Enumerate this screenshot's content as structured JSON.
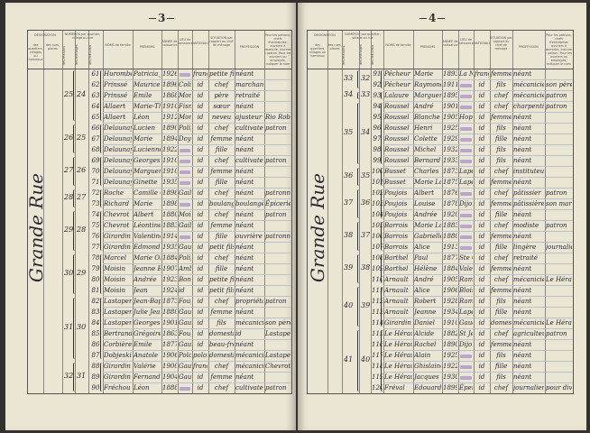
{
  "headers": {
    "designation": "DÉSIGNATION",
    "designation_sub1": "des quartiers, villages ou hameaux",
    "designation_sub2": "des rues, places",
    "numeros": "NUMÉROS par quartier, village ou rue",
    "numeros_sub": [
      "des maisons",
      "des ménages",
      "des individus"
    ],
    "noms": "NOMS de famille",
    "prenoms": "PRÉNOMS",
    "annee": "ANNÉE de naissance",
    "lieu": "LIEU de naissance",
    "nationalite": "NATIONALITÉ",
    "situation": "SITUATION par rapport au chef de ménage",
    "profession": "PROFESSION",
    "notes": "Pour les patrons, chefs d'entreprise, ouvriers à domicile, inscrire : patron. Pour les ouvriers ou employés, indiquer le nom du patron ou de l'entreprise qui les emploie."
  },
  "left_page": {
    "page_number": "3",
    "street": "Grande Rue",
    "groups": [
      {
        "maison": "25",
        "menage": "24",
        "first": 61,
        "last": 65
      },
      {
        "maison": "26",
        "menage": "25",
        "first": 66,
        "last": 68
      },
      {
        "maison": "27",
        "menage": "26",
        "first": 69,
        "last": 71
      },
      {
        "maison": "28",
        "menage": "27",
        "first": 72,
        "last": 73
      },
      {
        "maison": "29",
        "menage": "28",
        "first": 74,
        "last": 77
      },
      {
        "maison": "30",
        "menage": "29",
        "first": 78,
        "last": 81
      },
      {
        "maison": "31",
        "menage": "30",
        "first": 82,
        "last": 87
      },
      {
        "maison": "32",
        "menage": "31",
        "first": 88,
        "last": 90
      }
    ],
    "rows": [
      {
        "n": "61",
        "nom": "Hurombert",
        "prenom": "Patricia Jeanne",
        "annee": "1926",
        "lieu": "",
        "stamp": true,
        "nat": "française",
        "sit": "petite fille",
        "prof": "néant",
        "note": ""
      },
      {
        "n": "62",
        "nom": "Prinssé",
        "prenom": "Maurice",
        "annee": "1896",
        "lieu": "Coligny",
        "nat": "id",
        "sit": "chef",
        "prof": "marchand ambulant",
        "note": ""
      },
      {
        "n": "63",
        "nom": "Prinssé",
        "prenom": "Emile",
        "annee": "1868",
        "lieu": "Montargis",
        "nat": "id",
        "sit": "père",
        "prof": "retraité",
        "note": ""
      },
      {
        "n": "64",
        "nom": "Allaert",
        "prenom": "Marie-Thérèse",
        "annee": "1910",
        "lieu": "Fismes",
        "nat": "id",
        "sit": "sœur",
        "prof": "néant",
        "note": ""
      },
      {
        "n": "65",
        "nom": "Allaert",
        "prenom": "Léon",
        "annee": "1912",
        "lieu": "Montargis",
        "nat": "id",
        "sit": "neveu",
        "prof": "ajusteur mécanicien",
        "note": "Rio Roblet"
      },
      {
        "n": "66",
        "nom": "Delaunay",
        "prenom": "Lucien",
        "annee": "1890",
        "lieu": "Polignac",
        "nat": "id",
        "sit": "chef",
        "prof": "cultivateur",
        "note": "patron"
      },
      {
        "n": "67",
        "nom": "Delaunay",
        "prenom": "Marie",
        "annee": "1894",
        "lieu": "Doyen",
        "nat": "id",
        "sit": "femme",
        "prof": "néant",
        "note": ""
      },
      {
        "n": "68",
        "nom": "Delaunay",
        "prenom": "Lucienne",
        "annee": "1922",
        "lieu": "",
        "stamp": true,
        "nat": "id",
        "sit": "fille",
        "prof": "néant",
        "note": ""
      },
      {
        "n": "69",
        "nom": "Delaunay",
        "prenom": "Georges",
        "annee": "1910",
        "lieu": "",
        "stamp": true,
        "nat": "id",
        "sit": "chef",
        "prof": "cultivateur",
        "note": "patron"
      },
      {
        "n": "70",
        "nom": "Delaunay",
        "prenom": "Marguerite",
        "annee": "1910",
        "lieu": "",
        "stamp": true,
        "nat": "id",
        "sit": "femme",
        "prof": "néant",
        "note": ""
      },
      {
        "n": "71",
        "nom": "Delaunay",
        "prenom": "Ginette",
        "annee": "1935",
        "lieu": "",
        "stamp": true,
        "nat": "id",
        "sit": "fille",
        "prof": "néant",
        "note": ""
      },
      {
        "n": "72",
        "nom": "Roche",
        "prenom": "Camille Olga",
        "annee": "1898",
        "lieu": "Gaillard",
        "nat": "id",
        "sit": "chef",
        "prof": "néant",
        "note": "patronne"
      },
      {
        "n": "73",
        "nom": "Richard",
        "prenom": "Marie",
        "annee": "1898",
        "lieu": "",
        "stamp": true,
        "nat": "id",
        "sit": "boulangère",
        "prof": "boulangère",
        "note": "Épicerie Camille"
      },
      {
        "n": "74",
        "nom": "Chevrot",
        "prenom": "Albert",
        "annee": "1880",
        "lieu": "Moissac",
        "nat": "id",
        "sit": "chef",
        "prof": "néant",
        "note": "patron"
      },
      {
        "n": "75",
        "nom": "Chevrot",
        "prenom": "Léontine",
        "annee": "1883",
        "lieu": "Gaillac",
        "nat": "id",
        "sit": "femme",
        "prof": "néant",
        "note": ""
      },
      {
        "n": "76",
        "nom": "Girardin",
        "prenom": "Valentine",
        "annee": "1914",
        "lieu": "",
        "stamp": true,
        "nat": "id",
        "sit": "fille",
        "prof": "ouvrière",
        "note": "patronne"
      },
      {
        "n": "77",
        "nom": "Girardin",
        "prenom": "Edmond",
        "annee": "1935",
        "lieu": "Gaudelle",
        "nat": "id",
        "sit": "petit fils",
        "prof": "néant",
        "note": ""
      },
      {
        "n": "78",
        "nom": "Marcel",
        "prenom": "Marie Olga",
        "annee": "1884",
        "lieu": "Polignac",
        "nat": "id",
        "sit": "chef",
        "prof": "néant",
        "note": ""
      },
      {
        "n": "79",
        "nom": "Moisin",
        "prenom": "Jeanne Eugénie",
        "annee": "1907",
        "lieu": "Ambérieu",
        "nat": "id",
        "sit": "fille",
        "prof": "néant",
        "note": ""
      },
      {
        "n": "80",
        "nom": "Moisin",
        "prenom": "Andrée",
        "annee": "1923",
        "lieu": "Bonneval",
        "nat": "id",
        "sit": "petite fille",
        "prof": "néant",
        "note": ""
      },
      {
        "n": "81",
        "nom": "Moisin",
        "prenom": "Jean",
        "annee": "1924",
        "lieu": "id",
        "nat": "id",
        "sit": "petit fils",
        "prof": "néant",
        "note": ""
      },
      {
        "n": "82",
        "nom": "Lastapent",
        "prenom": "Jean-Baptiste",
        "annee": "1873",
        "lieu": "Fougerolles",
        "nat": "id",
        "sit": "chef",
        "prof": "propriétaire",
        "note": "patron"
      },
      {
        "n": "83",
        "nom": "Lastapent",
        "prenom": "Julie Jeanne",
        "annee": "1880",
        "lieu": "Gaudelle",
        "nat": "id",
        "sit": "femme",
        "prof": "néant",
        "note": ""
      },
      {
        "n": "84",
        "nom": "Lastapent",
        "prenom": "Georges",
        "annee": "1901",
        "lieu": "Gaudelle",
        "nat": "id",
        "sit": "fils",
        "prof": "mécanicien",
        "note": "son père"
      },
      {
        "n": "85",
        "nom": "Bertrand",
        "prenom": "Grégoire",
        "annee": "1863",
        "lieu": "Fougerolles",
        "nat": "id",
        "sit": "domestique",
        "prof": "id",
        "note": "Lastapent"
      },
      {
        "n": "86",
        "nom": "Corbière",
        "prenom": "Emile",
        "annee": "1877",
        "lieu": "Gaudelle",
        "nat": "id",
        "sit": "beau-frère",
        "prof": "néant",
        "note": ""
      },
      {
        "n": "87",
        "nom": "Dobjeski",
        "prenom": "Anatole",
        "annee": "1906",
        "lieu": "Pologne",
        "nat": "polonais",
        "sit": "domestique",
        "prof": "mécanicien",
        "note": "Lastapent"
      },
      {
        "n": "88",
        "nom": "Girardin",
        "prenom": "Valérie",
        "annee": "1900",
        "lieu": "Gaudelle",
        "nat": "française",
        "sit": "chef",
        "prof": "mécanicien",
        "note": "Chevrot Albert"
      },
      {
        "n": "89",
        "nom": "Girardin",
        "prenom": "Fernande",
        "annee": "1904",
        "lieu": "Gaudelle",
        "nat": "id",
        "sit": "femme",
        "prof": "néant",
        "note": ""
      },
      {
        "n": "90",
        "nom": "Fréchou",
        "prenom": "Léon",
        "annee": "1888",
        "lieu": "",
        "stamp": true,
        "nat": "id",
        "sit": "chef",
        "prof": "cultivateur fermier",
        "note": "patron"
      }
    ]
  },
  "right_page": {
    "page_number": "4",
    "street": "Grande Rue",
    "groups": [
      {
        "maison": "33",
        "menage": "32",
        "first": 91,
        "last": 92
      },
      {
        "maison": "34",
        "menage": "33",
        "first": 93,
        "last": 93
      },
      {
        "maison": "35",
        "menage": "34",
        "first": 94,
        "last": 99
      },
      {
        "maison": "36",
        "menage": "35",
        "first": 100,
        "last": 101
      },
      {
        "maison": "37",
        "menage": "36",
        "first": 102,
        "last": 104
      },
      {
        "maison": "38",
        "menage": "37",
        "first": 105,
        "last": 107
      },
      {
        "maison": "39",
        "menage": "38",
        "first": 108,
        "last": 110
      },
      {
        "maison": "40",
        "menage": "39",
        "first": 111,
        "last": 114
      },
      {
        "maison": "41",
        "menage": "40",
        "first": 115,
        "last": 120
      }
    ],
    "rows": [
      {
        "n": "91",
        "nom": "Pécheur",
        "prenom": "Marie",
        "annee": "1893",
        "lieu": "La Neuville",
        "nat": "française",
        "sit": "femme",
        "prof": "néant",
        "note": ""
      },
      {
        "n": "92",
        "nom": "Pécheur",
        "prenom": "Raymond",
        "annee": "1911",
        "lieu": "",
        "stamp": true,
        "nat": "id",
        "sit": "fils",
        "prof": "mécanicien",
        "note": "son père"
      },
      {
        "n": "93",
        "nom": "Lalaure",
        "prenom": "Marguerite",
        "annee": "1895",
        "lieu": "",
        "stamp": true,
        "nat": "id",
        "sit": "chef",
        "prof": "mécanicien",
        "note": "patron"
      },
      {
        "n": "94",
        "nom": "Roussel",
        "prenom": "André",
        "annee": "1901",
        "lieu": "",
        "stamp": true,
        "nat": "id",
        "sit": "chef",
        "prof": "charpentier",
        "note": "patron"
      },
      {
        "n": "95",
        "nom": "Roussel",
        "prenom": "Blanche",
        "annee": "1905",
        "lieu": "Hoplande",
        "nat": "id",
        "sit": "femme",
        "prof": "néant",
        "note": ""
      },
      {
        "n": "96",
        "nom": "Roussel",
        "prenom": "Henri",
        "annee": "1925",
        "lieu": "",
        "stamp": true,
        "nat": "id",
        "sit": "fils",
        "prof": "néant",
        "note": ""
      },
      {
        "n": "97",
        "nom": "Roussel",
        "prenom": "Colette",
        "annee": "1929",
        "lieu": "",
        "stamp": true,
        "nat": "id",
        "sit": "fille",
        "prof": "néant",
        "note": ""
      },
      {
        "n": "98",
        "nom": "Roussel",
        "prenom": "Michel",
        "annee": "1932",
        "lieu": "",
        "stamp": true,
        "nat": "id",
        "sit": "fils",
        "prof": "néant",
        "note": ""
      },
      {
        "n": "99",
        "nom": "Roussel",
        "prenom": "Bernard",
        "annee": "1933",
        "lieu": "",
        "stamp": true,
        "nat": "id",
        "sit": "fils",
        "prof": "néant",
        "note": ""
      },
      {
        "n": "100",
        "nom": "Busset",
        "prenom": "Charles",
        "annee": "1873",
        "lieu": "Lapeyre",
        "nat": "id",
        "sit": "chef",
        "prof": "instituteur honoraire",
        "note": ""
      },
      {
        "n": "101",
        "nom": "Busset",
        "prenom": "Marie Louise",
        "annee": "1875",
        "lieu": "Lapeyre",
        "nat": "id",
        "sit": "femme",
        "prof": "néant",
        "note": ""
      },
      {
        "n": "102",
        "nom": "Poujois",
        "prenom": "Albert",
        "annee": "1876",
        "lieu": "",
        "stamp": true,
        "nat": "id",
        "sit": "chef",
        "prof": "pâtissier",
        "note": "patron"
      },
      {
        "n": "103",
        "nom": "Poujois",
        "prenom": "Louise",
        "annee": "1878",
        "lieu": "Dijon",
        "nat": "id",
        "sit": "femme",
        "prof": "pâtissière",
        "note": "son mari"
      },
      {
        "n": "104",
        "nom": "Poujois",
        "prenom": "Andrée",
        "annee": "1920",
        "lieu": "",
        "stamp": true,
        "nat": "id",
        "sit": "fille",
        "prof": "néant",
        "note": ""
      },
      {
        "n": "105",
        "nom": "Barrois",
        "prenom": "Marie Louis",
        "annee": "1883",
        "lieu": "",
        "stamp": true,
        "nat": "id",
        "sit": "chef",
        "prof": "modiste",
        "note": "patron"
      },
      {
        "n": "106",
        "nom": "Barrois",
        "prenom": "Gabrielle",
        "annee": "1880",
        "lieu": "",
        "stamp": true,
        "nat": "id",
        "sit": "femme",
        "prof": "néant",
        "note": ""
      },
      {
        "n": "107",
        "nom": "Barrois",
        "prenom": "Alice",
        "annee": "1913",
        "lieu": "",
        "stamp": true,
        "nat": "id",
        "sit": "fille",
        "prof": "lingère",
        "note": "journalière"
      },
      {
        "n": "108",
        "nom": "Barthel",
        "prenom": "Paul",
        "annee": "1877",
        "lieu": "Ste Croix",
        "nat": "id",
        "sit": "chef",
        "prof": "retraité",
        "note": ""
      },
      {
        "n": "109",
        "nom": "Barthel",
        "prenom": "Hélène",
        "annee": "1884",
        "lieu": "Valenciennes",
        "nat": "id",
        "sit": "femme",
        "prof": "néant",
        "note": ""
      },
      {
        "n": "110",
        "nom": "Arnault",
        "prenom": "André",
        "annee": "1905",
        "lieu": "Rambouillet",
        "nat": "id",
        "sit": "chef",
        "prof": "mécanicien",
        "note": "Le Hérault"
      },
      {
        "n": "111",
        "nom": "Arnault",
        "prenom": "Alice",
        "annee": "1906",
        "lieu": "Blois",
        "nat": "id",
        "sit": "femme",
        "prof": "néant",
        "note": ""
      },
      {
        "n": "112",
        "nom": "Arnault",
        "prenom": "Robert",
        "annee": "1928",
        "lieu": "Rambouillet",
        "nat": "id",
        "sit": "fils",
        "prof": "néant",
        "note": ""
      },
      {
        "n": "113",
        "nom": "Arnault",
        "prenom": "Jeanne",
        "annee": "1934",
        "lieu": "Lapeyre",
        "nat": "id",
        "sit": "fille",
        "prof": "néant",
        "note": ""
      },
      {
        "n": "114",
        "nom": "Girardin",
        "prenom": "Daniel",
        "annee": "1910",
        "lieu": "Gaudelle",
        "nat": "id",
        "sit": "domestique",
        "prof": "mécanicien",
        "note": "Le Hérault"
      },
      {
        "n": "115",
        "nom": "Le Hérault",
        "prenom": "Alcide",
        "annee": "1882",
        "lieu": "St Jean",
        "nat": "id",
        "sit": "chef",
        "prof": "agriculteur propriétaire",
        "note": "patron"
      },
      {
        "n": "116",
        "nom": "Le Hérault",
        "prenom": "Rachel",
        "annee": "1890",
        "lieu": "Dijon",
        "nat": "id",
        "sit": "femme",
        "prof": "néant",
        "note": ""
      },
      {
        "n": "117",
        "nom": "Le Hérault",
        "prenom": "Alain",
        "annee": "1925",
        "lieu": "",
        "stamp": true,
        "nat": "id",
        "sit": "fils",
        "prof": "néant",
        "note": ""
      },
      {
        "n": "118",
        "nom": "Le Hérault",
        "prenom": "Ghislaine",
        "annee": "1922",
        "lieu": "",
        "stamp": true,
        "nat": "id",
        "sit": "fille",
        "prof": "néant",
        "note": ""
      },
      {
        "n": "119",
        "nom": "Le Hérault",
        "prenom": "Jacques",
        "annee": "1930",
        "lieu": "",
        "stamp": true,
        "nat": "id",
        "sit": "fils",
        "prof": "néant",
        "note": ""
      },
      {
        "n": "120",
        "nom": "Fréval",
        "prenom": "Edouard",
        "annee": "1899",
        "lieu": "Épernay",
        "nat": "id",
        "sit": "chef",
        "prof": "journalier",
        "note": "pour divers"
      }
    ]
  },
  "colors": {
    "paper": "#ebe5d3",
    "ink": "#2b2a33",
    "stamp": "#a58ad0",
    "rule": "#b9c2cc",
    "background": "#34322f"
  }
}
